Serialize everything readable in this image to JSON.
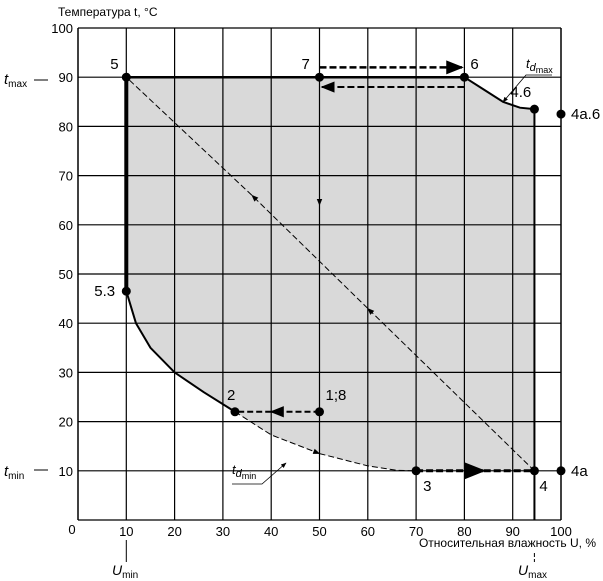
{
  "chart_data": {
    "type": "scatter",
    "title": "",
    "ylabel": "Температура t, °C",
    "xlabel": "Относительная влажность U, %",
    "xlim": [
      0,
      100
    ],
    "ylim": [
      0,
      100
    ],
    "grid": true,
    "x_ticks": [
      "0",
      "10",
      "20",
      "30",
      "40",
      "50",
      "60",
      "70",
      "80",
      "90",
      "100"
    ],
    "y_ticks": [
      "0",
      "10",
      "20",
      "30",
      "40",
      "50",
      "60",
      "70",
      "80",
      "90",
      "100"
    ],
    "markers": {
      "t_max": {
        "label": "t",
        "sub": "max",
        "value": 90
      },
      "t_min": {
        "label": "t",
        "sub": "min",
        "value": 10
      },
      "U_min": {
        "label": "U",
        "sub": "min",
        "value": 10
      },
      "U_max": {
        "label": "U",
        "sub": "max",
        "value": 94.5
      }
    },
    "points": [
      {
        "label": "5",
        "x": 10,
        "y": 90
      },
      {
        "label": "7",
        "x": 50,
        "y": 90
      },
      {
        "label": "6",
        "x": 80,
        "y": 90
      },
      {
        "label": "4.6",
        "x": 94.5,
        "y": 83.5
      },
      {
        "label": "4a.6",
        "x": 100,
        "y": 82.5
      },
      {
        "label": "5.3",
        "x": 10,
        "y": 46.5
      },
      {
        "label": "2",
        "x": 32.5,
        "y": 22
      },
      {
        "label": "1;8",
        "x": 50,
        "y": 22
      },
      {
        "label": "3",
        "x": 70,
        "y": 10
      },
      {
        "label": "4",
        "x": 94.5,
        "y": 10
      },
      {
        "label": "4a",
        "x": 100,
        "y": 10
      }
    ],
    "curves": {
      "td_max": {
        "label": "t",
        "sub": "d",
        "subsub": "max",
        "points": [
          [
            80,
            90
          ],
          [
            84,
            87.5
          ],
          [
            88,
            85
          ],
          [
            91.5,
            83.8
          ],
          [
            94.5,
            83.5
          ]
        ]
      },
      "td_min": {
        "label": "t",
        "sub": "d",
        "subsub": "min",
        "points": [
          [
            32.5,
            22
          ],
          [
            40,
            17.3
          ],
          [
            50,
            13.5
          ],
          [
            60,
            11
          ],
          [
            66,
            10.1
          ],
          [
            70,
            10
          ]
        ]
      },
      "lower_solid": {
        "points": [
          [
            10,
            46.5
          ],
          [
            12,
            40
          ],
          [
            15,
            35
          ],
          [
            20,
            30
          ],
          [
            26,
            26
          ],
          [
            32.5,
            22
          ]
        ]
      }
    },
    "colors": {
      "region": "#d9d9d9",
      "grid": "#000000"
    }
  }
}
